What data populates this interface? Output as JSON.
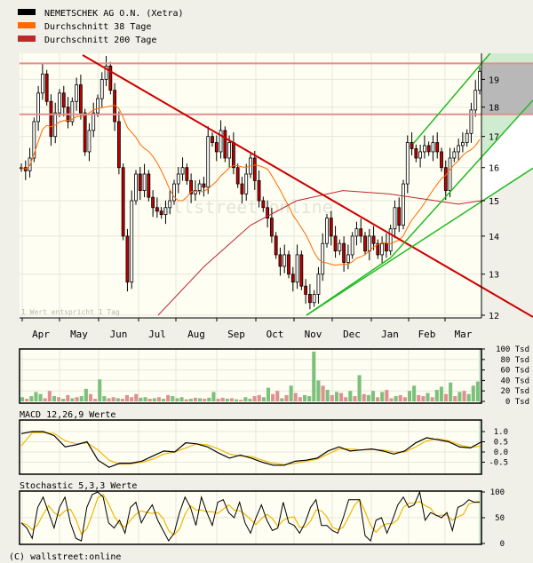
{
  "legend": [
    {
      "label": "NEMETSCHEK AG O.N. (Xetra)",
      "color": "#000000"
    },
    {
      "label": "Durchschnitt 38 Tage",
      "color": "#ff6a00"
    },
    {
      "label": "Durchschnitt 200 Tage",
      "color": "#c0282f"
    }
  ],
  "note": "1 Wert entspricht 1 Tag",
  "watermark": "wallstreet:online",
  "footer": "(C) wallstreet:online",
  "colors": {
    "up_volume": "#7cc07c",
    "down_volume": "#e09090",
    "candle_down": "#c00000",
    "trend_down": "#cc0000",
    "trend_up": "#22bb22",
    "macd": "#000000",
    "signal": "#f0b800",
    "resistance": "#e09090",
    "gray_zone": "#b8b8b8",
    "green_zone": "#d0ecd0"
  },
  "chart_data": [
    {
      "type": "candlestick",
      "title": "NEMETSCHEK AG O.N. (Xetra)",
      "x_tick_labels": [
        "Apr",
        "May",
        "Jun",
        "Jul",
        "Aug",
        "Sep",
        "Oct",
        "Nov",
        "Dec",
        "Jan",
        "Feb",
        "Mar"
      ],
      "y_tick_labels": [
        "12",
        "13",
        "14",
        "15",
        "16",
        "17",
        "18",
        "19"
      ],
      "ylim": [
        12,
        19.7
      ],
      "y_scale": "log",
      "grid": true,
      "legend_position": "top-left",
      "closes": [
        16.0,
        15.9,
        16.3,
        17.5,
        18.5,
        19.2,
        18.2,
        17.0,
        17.8,
        18.5,
        18.0,
        17.5,
        18.2,
        18.8,
        17.8,
        16.5,
        17.2,
        17.8,
        18.3,
        19.0,
        19.5,
        18.6,
        17.5,
        16.0,
        14.0,
        12.8,
        15.0,
        15.8,
        15.3,
        15.8,
        15.1,
        14.8,
        14.7,
        14.6,
        14.8,
        15.0,
        15.5,
        15.8,
        16.0,
        15.6,
        15.2,
        15.3,
        15.5,
        15.4,
        17.0,
        16.8,
        16.5,
        17.2,
        16.3,
        16.8,
        16.0,
        15.5,
        15.2,
        15.8,
        16.3,
        15.6,
        15.0,
        14.8,
        14.5,
        14.0,
        13.5,
        13.2,
        13.5,
        13.0,
        12.8,
        13.5,
        12.7,
        12.5,
        12.3,
        12.5,
        13.0,
        13.8,
        14.5,
        14.0,
        13.6,
        13.8,
        13.3,
        13.5,
        14.0,
        14.2,
        14.0,
        13.6,
        14.0,
        13.8,
        13.5,
        13.8,
        13.6,
        14.2,
        14.8,
        14.3,
        15.5,
        16.8,
        16.6,
        16.3,
        16.5,
        16.7,
        16.5,
        16.8,
        16.5,
        16.0,
        15.3,
        16.3,
        16.5,
        16.7,
        16.8,
        17.1,
        17.9,
        18.6,
        19.3
      ],
      "ma38_window_points": 15,
      "ma200": [
        [
          0.3,
          12.0
        ],
        [
          0.4,
          13.2
        ],
        [
          0.5,
          14.3
        ],
        [
          0.6,
          15.0
        ],
        [
          0.7,
          15.3
        ],
        [
          0.8,
          15.2
        ],
        [
          0.9,
          15.0
        ],
        [
          0.95,
          14.9
        ],
        [
          1.0,
          15.0
        ]
      ],
      "resistance_levels": [
        19.6,
        17.75
      ]
    },
    {
      "type": "bar",
      "y_tick_labels": [
        "100 Tsd",
        "80 Tsd",
        "60 Tsd",
        "40 Tsd",
        "20 Tsd",
        "0 Tsd"
      ],
      "ylim": [
        0,
        100
      ],
      "unit": "Tsd",
      "values": [
        8,
        5,
        10,
        18,
        14,
        6,
        20,
        10,
        8,
        5,
        12,
        6,
        8,
        10,
        24,
        14,
        5,
        42,
        10,
        6,
        8,
        6,
        5,
        12,
        8,
        14,
        7,
        8,
        5,
        6,
        8,
        5,
        12,
        10,
        6,
        8,
        4,
        5,
        7,
        6,
        5,
        7,
        18,
        5,
        7,
        5,
        6,
        4,
        3,
        8,
        5,
        10,
        12,
        8,
        26,
        14,
        20,
        6,
        12,
        30,
        16,
        8,
        12,
        10,
        95,
        40,
        30,
        22,
        12,
        18,
        16,
        8,
        20,
        10,
        50,
        14,
        12,
        20,
        8,
        18,
        22,
        6,
        10,
        12,
        8,
        20,
        30,
        12,
        10,
        16,
        8,
        22,
        28,
        14,
        36,
        10,
        18,
        20,
        14,
        30,
        38
      ],
      "up": [
        1,
        0,
        1,
        1,
        1,
        0,
        0,
        1,
        0,
        1,
        0,
        1,
        0,
        1,
        1,
        0,
        0,
        1,
        1,
        0,
        0,
        1,
        0,
        0,
        0,
        0,
        1,
        1,
        0,
        1,
        0,
        1,
        0,
        1,
        1,
        1,
        0,
        1,
        0,
        1,
        0,
        1,
        1,
        0,
        0,
        1,
        0,
        1,
        0,
        1,
        1,
        0,
        0,
        1,
        1,
        0,
        0,
        1,
        0,
        1,
        0,
        0,
        1,
        1,
        1,
        1,
        0,
        1,
        0,
        1,
        0,
        0,
        1,
        0,
        1,
        0,
        1,
        1,
        0,
        1,
        0,
        0,
        1,
        0,
        0,
        1,
        1,
        0,
        0,
        1,
        0,
        1,
        1,
        0,
        1,
        0,
        1,
        0,
        1,
        1,
        1
      ]
    },
    {
      "type": "line",
      "title": "MACD 12,26,9 Werte",
      "y_tick_labels": [
        "1.0",
        "0.5",
        "0.0",
        "-0.5"
      ],
      "ylim": [
        -0.95,
        1.45
      ],
      "series": [
        {
          "values": [
            0.9,
            1.0,
            1.0,
            0.8,
            0.25,
            0.35,
            0.5,
            -0.4,
            -0.75,
            -0.55,
            -0.55,
            -0.45,
            -0.2,
            0.05,
            0.0,
            0.45,
            0.4,
            0.25,
            -0.05,
            -0.3,
            -0.15,
            -0.3,
            -0.5,
            -0.65,
            -0.65,
            -0.45,
            -0.4,
            -0.3,
            0.05,
            0.25,
            0.05,
            0.1,
            0.15,
            0.05,
            -0.1,
            0.05,
            0.45,
            0.7,
            0.6,
            0.5,
            0.25,
            0.2,
            0.5
          ]
        },
        {
          "values": [
            0.3,
            0.95,
            0.95,
            0.9,
            0.55,
            0.4,
            0.45,
            0.1,
            -0.4,
            -0.6,
            -0.58,
            -0.5,
            -0.35,
            -0.1,
            0.0,
            0.2,
            0.4,
            0.35,
            0.15,
            -0.1,
            -0.2,
            -0.22,
            -0.4,
            -0.55,
            -0.62,
            -0.55,
            -0.45,
            -0.35,
            -0.1,
            0.15,
            0.15,
            0.1,
            0.12,
            0.1,
            0.0,
            0.0,
            0.25,
            0.55,
            0.65,
            0.55,
            0.35,
            0.22,
            0.3
          ]
        }
      ]
    },
    {
      "type": "line",
      "title": "Stochastic 5,3,3 Werte",
      "y_tick_labels": [
        "100",
        "50",
        "0"
      ],
      "ylim": [
        0,
        100
      ],
      "series": [
        {
          "values": [
            40,
            30,
            10,
            70,
            90,
            60,
            30,
            70,
            90,
            40,
            10,
            5,
            70,
            95,
            100,
            90,
            40,
            30,
            45,
            20,
            70,
            80,
            40,
            60,
            75,
            45,
            25,
            5,
            20,
            60,
            90,
            70,
            35,
            90,
            60,
            35,
            80,
            85,
            60,
            50,
            80,
            40,
            20,
            50,
            75,
            45,
            25,
            30,
            80,
            40,
            35,
            20,
            40,
            70,
            85,
            35,
            35,
            25,
            20,
            50,
            85,
            85,
            85,
            15,
            5,
            45,
            50,
            20,
            45,
            75,
            90,
            70,
            75,
            100,
            45,
            60,
            55,
            50,
            60,
            25,
            70,
            75,
            85,
            80,
            80
          ]
        }
      ]
    }
  ],
  "footer_label": "(C) wallstreet:online"
}
